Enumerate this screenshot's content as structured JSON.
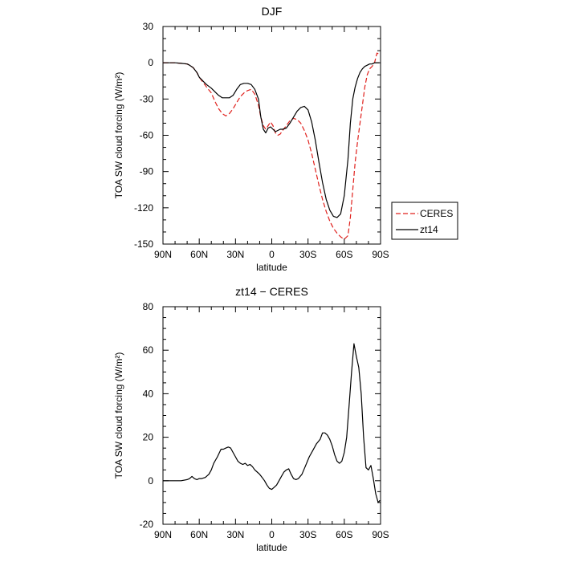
{
  "chart_data": [
    {
      "type": "line",
      "title": "DJF",
      "xlabel": "latitude",
      "ylabel": "TOA SW cloud forcing (W/m²)",
      "xlim": [
        90,
        -90
      ],
      "ylim": [
        -150,
        30
      ],
      "x_tick_values": [
        90,
        60,
        30,
        0,
        -30,
        -60,
        -90
      ],
      "x_tick_labels": [
        "90N",
        "60N",
        "30N",
        "0",
        "30S",
        "60S",
        "90S"
      ],
      "y_tick_values": [
        30,
        0,
        -30,
        -60,
        -90,
        -120,
        -150
      ],
      "y_tick_labels": [
        "30",
        "0",
        "-30",
        "-60",
        "-90",
        "-120",
        "-150"
      ],
      "legend_position": "outside-right",
      "series": [
        {
          "name": "CERES",
          "color": "#e0201c",
          "dash": "dashed",
          "x": [
            90,
            80,
            75,
            70,
            68,
            65,
            62,
            60,
            57,
            54,
            50,
            47,
            44,
            41,
            38,
            35,
            32,
            29,
            26,
            23,
            20,
            17,
            14,
            11,
            9,
            7,
            5,
            3,
            1,
            -1,
            -3,
            -5,
            -7,
            -9,
            -12,
            -15,
            -18,
            -21,
            -24,
            -27,
            -30,
            -33,
            -36,
            -39,
            -42,
            -45,
            -48,
            -51,
            -54,
            -57,
            -60,
            -63,
            -65,
            -67,
            -69,
            -71,
            -73,
            -75,
            -77,
            -79,
            -81,
            -83,
            -85,
            -87,
            -89
          ],
          "y": [
            0,
            0,
            -0.5,
            -1,
            -2,
            -4,
            -8,
            -12,
            -16,
            -20,
            -25,
            -32,
            -38,
            -42,
            -44,
            -42,
            -38,
            -33,
            -28,
            -25,
            -23,
            -22,
            -26,
            -35,
            -45,
            -52,
            -55,
            -52,
            -49,
            -52,
            -58,
            -60,
            -59,
            -56,
            -52,
            -48,
            -46,
            -47,
            -50,
            -56,
            -64,
            -75,
            -88,
            -101,
            -113,
            -123,
            -131,
            -137,
            -141,
            -144,
            -146,
            -143,
            -128,
            -105,
            -82,
            -65,
            -50,
            -35,
            -20,
            -10,
            -5,
            -3,
            0,
            8,
            7
          ]
        },
        {
          "name": "zt14",
          "color": "#000000",
          "dash": "solid",
          "x": [
            90,
            80,
            75,
            70,
            68,
            65,
            62,
            60,
            57,
            54,
            50,
            47,
            44,
            41,
            38,
            35,
            32,
            29,
            26,
            23,
            20,
            17,
            14,
            11,
            9,
            7,
            5,
            3,
            1,
            -1,
            -3,
            -5,
            -7,
            -9,
            -12,
            -15,
            -18,
            -21,
            -24,
            -27,
            -30,
            -33,
            -36,
            -39,
            -42,
            -45,
            -48,
            -51,
            -54,
            -57,
            -60,
            -63,
            -65,
            -67,
            -69,
            -71,
            -73,
            -75,
            -77,
            -79,
            -81,
            -83,
            -85,
            -87,
            -89
          ],
          "y": [
            0,
            0,
            -0.5,
            -1,
            -2,
            -4,
            -8,
            -12,
            -15,
            -18,
            -21,
            -24,
            -27,
            -29,
            -29,
            -29,
            -27,
            -22,
            -18,
            -17,
            -17,
            -18,
            -22,
            -30,
            -45,
            -55,
            -58,
            -54,
            -53,
            -55,
            -57,
            -56,
            -55,
            -55,
            -54,
            -50,
            -45,
            -40,
            -37,
            -36,
            -39,
            -49,
            -64,
            -82,
            -99,
            -113,
            -122,
            -127,
            -128,
            -125,
            -110,
            -80,
            -50,
            -30,
            -20,
            -13,
            -8,
            -5,
            -3,
            -2,
            -1,
            -1,
            0,
            0,
            0
          ]
        }
      ]
    },
    {
      "type": "line",
      "title": "zt14 − CERES",
      "xlabel": "latitude",
      "ylabel": "TOA SW cloud forcing (W/m²)",
      "xlim": [
        90,
        -90
      ],
      "ylim": [
        -20,
        80
      ],
      "x_tick_values": [
        90,
        60,
        30,
        0,
        -30,
        -60,
        -90
      ],
      "x_tick_labels": [
        "90N",
        "60N",
        "30N",
        "0",
        "30S",
        "60S",
        "90S"
      ],
      "y_tick_values": [
        80,
        60,
        40,
        20,
        0,
        -20
      ],
      "y_tick_labels": [
        "80",
        "60",
        "40",
        "20",
        "0",
        "-20"
      ],
      "series": [
        {
          "color": "#000000",
          "dash": "solid",
          "x": [
            90,
            80,
            75,
            70,
            68,
            66,
            64,
            62,
            60,
            58,
            55,
            52,
            50,
            48,
            45,
            42,
            40,
            38,
            36,
            34,
            32,
            30,
            28,
            26,
            24,
            22,
            20,
            18,
            16,
            14,
            12,
            10,
            8,
            6,
            4,
            2,
            0,
            -2,
            -4,
            -6,
            -8,
            -10,
            -12,
            -14,
            -16,
            -18,
            -20,
            -22,
            -25,
            -28,
            -31,
            -34,
            -37,
            -40,
            -42,
            -44,
            -46,
            -48,
            -50,
            -52,
            -54,
            -56,
            -58,
            -60,
            -62,
            -64,
            -66,
            -68,
            -70,
            -72,
            -74,
            -76,
            -77,
            -78,
            -80,
            -82,
            -84,
            -86,
            -88,
            -89.5
          ],
          "y": [
            0,
            0,
            0,
            0.5,
            1,
            2,
            1,
            0.5,
            1,
            1,
            1.5,
            3,
            5,
            8,
            11,
            14.5,
            14.5,
            15,
            15.5,
            15,
            13,
            11,
            9,
            8,
            7.5,
            8,
            7,
            7.5,
            6.5,
            5,
            4,
            3,
            1.5,
            0,
            -2,
            -3.5,
            -4,
            -3,
            -2,
            0,
            2,
            4,
            5,
            5.5,
            3,
            1,
            0.5,
            1,
            3,
            7,
            11,
            14,
            17,
            19,
            22,
            22,
            21,
            19,
            16,
            12,
            9,
            8,
            9,
            13,
            20,
            35,
            50,
            63,
            57,
            52,
            40,
            20,
            13,
            6,
            5,
            7,
            1,
            -6,
            -10,
            -9
          ]
        }
      ]
    }
  ]
}
